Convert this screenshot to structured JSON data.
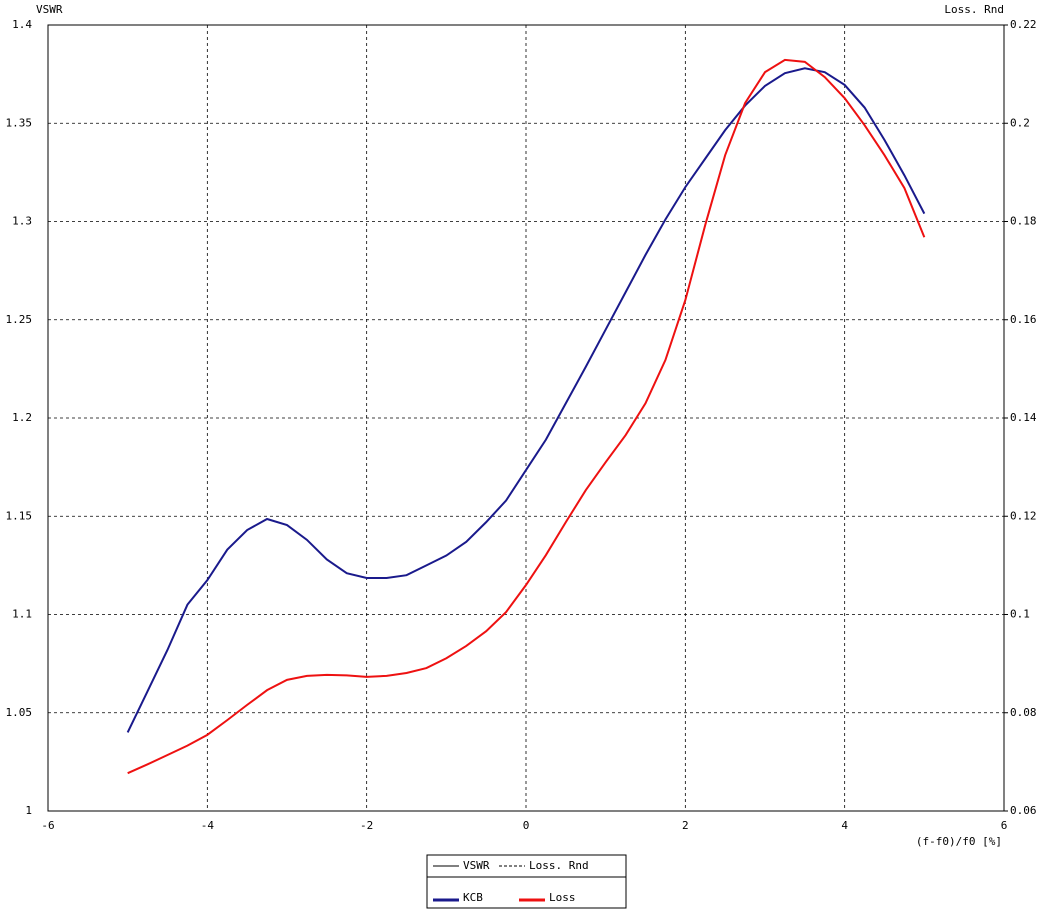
{
  "chart_data": {
    "type": "line",
    "ylabel": "VSWR",
    "y2label": "Loss. Rnd",
    "xlabel": "(f-f0)/f0 [%]",
    "x": [
      -5,
      -4.75,
      -4.5,
      -4.25,
      -4,
      -3.75,
      -3.5,
      -3.25,
      -3,
      -2.75,
      -2.5,
      -2.25,
      -2,
      -1.75,
      -1.5,
      -1.25,
      -1,
      -0.75,
      -0.5,
      -0.25,
      0,
      0.25,
      0.5,
      0.75,
      1,
      1.25,
      1.5,
      1.75,
      2,
      2.25,
      2.5,
      2.75,
      3,
      3.25,
      3.5,
      3.75,
      4,
      4.25,
      4.5,
      4.75,
      5
    ],
    "series": [
      {
        "name": "KCB",
        "color": "#1a1a8c",
        "axis": "y",
        "values": [
          1.04,
          1.061,
          1.082,
          1.105,
          1.1175,
          1.133,
          1.143,
          1.1486,
          1.1455,
          1.138,
          1.128,
          1.121,
          1.1186,
          1.1186,
          1.12,
          1.125,
          1.13,
          1.137,
          1.147,
          1.158,
          1.1735,
          1.189,
          1.2075,
          1.226,
          1.245,
          1.264,
          1.283,
          1.301,
          1.3175,
          1.332,
          1.3465,
          1.359,
          1.369,
          1.3755,
          1.378,
          1.376,
          1.3695,
          1.358,
          1.3415,
          1.3235,
          1.304
        ]
      },
      {
        "name": "Loss",
        "color": "#ee1111",
        "axis": "y2",
        "values": [
          0.0677,
          0.0695,
          0.0714,
          0.0733,
          0.0755,
          0.0785,
          0.0816,
          0.0846,
          0.0867,
          0.0875,
          0.0877,
          0.0876,
          0.0873,
          0.0875,
          0.0881,
          0.0891,
          0.0911,
          0.0936,
          0.0966,
          0.1005,
          0.106,
          0.1121,
          0.1188,
          0.1253,
          0.131,
          0.1365,
          0.143,
          0.1518,
          0.164,
          0.1793,
          0.1935,
          0.2041,
          0.2104,
          0.2129,
          0.2125,
          0.2094,
          0.2051,
          0.1996,
          0.1935,
          0.1868,
          0.1768
        ]
      }
    ],
    "style_legend": [
      {
        "name": "VSWR",
        "style": "solid"
      },
      {
        "name": "Loss. Rnd",
        "style": "dashed"
      }
    ],
    "xlim": [
      -6,
      6
    ],
    "xticks": [
      -6,
      -4,
      -2,
      0,
      2,
      4,
      6
    ],
    "ylim": [
      1,
      1.4
    ],
    "yticks": [
      1,
      1.05,
      1.1,
      1.15,
      1.2,
      1.25,
      1.3,
      1.35,
      1.4
    ],
    "y2lim": [
      0.06,
      0.22
    ],
    "y2ticks": [
      0.06,
      0.08,
      0.1,
      0.12,
      0.14,
      0.16,
      0.18,
      0.2,
      0.22
    ],
    "grid": true
  }
}
